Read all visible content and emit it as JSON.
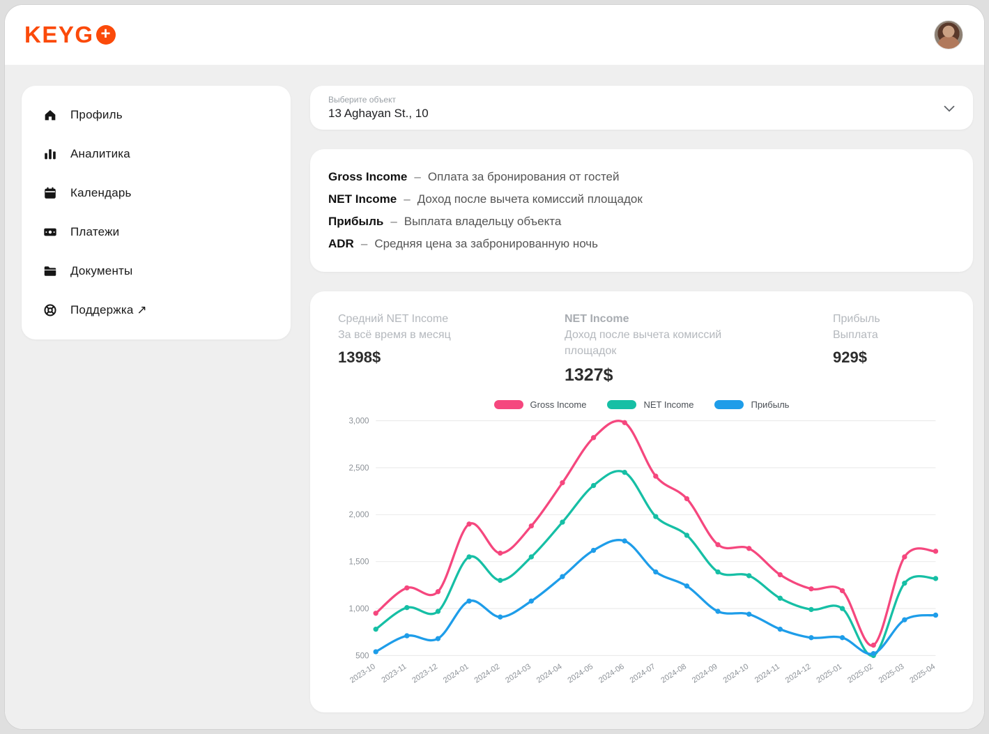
{
  "header": {
    "logo_text": "KEYG",
    "logo_badge": "+"
  },
  "sidebar": {
    "items": [
      {
        "label": "Профиль",
        "icon": "home-icon"
      },
      {
        "label": "Аналитика",
        "icon": "bar-chart-icon"
      },
      {
        "label": "Календарь",
        "icon": "calendar-icon"
      },
      {
        "label": "Платежи",
        "icon": "banknote-icon"
      },
      {
        "label": "Документы",
        "icon": "folder-icon"
      },
      {
        "label": "Поддержка ↗",
        "icon": "lifebuoy-icon"
      }
    ]
  },
  "selector": {
    "label": "Выберите объект",
    "value": "13 Aghayan St., 10"
  },
  "glossary": {
    "items": [
      {
        "term": "Gross Income",
        "sep": "–",
        "definition": "Оплата за бронирования от гостей"
      },
      {
        "term": "NET Income",
        "sep": "–",
        "definition": "Доход после вычета комиссий площадок"
      },
      {
        "term": "Прибыль",
        "sep": "–",
        "definition": "Выплата владельцу объекта"
      },
      {
        "term": "ADR",
        "sep": "–",
        "definition": "Средняя цена за забронированную ночь"
      }
    ]
  },
  "stats": [
    {
      "title": "Средний NET Income",
      "subtitle": "За всё время в месяц",
      "value": "1398$"
    },
    {
      "title": "NET Income",
      "subtitle": "Доход после вычета комиссий площадок",
      "value": "1327$"
    },
    {
      "title": "Прибыль",
      "subtitle": "Выплата",
      "value": "929$"
    }
  ],
  "chart_data": {
    "type": "line",
    "x": [
      "2023-10",
      "2023-11",
      "2023-12",
      "2024-01",
      "2024-02",
      "2024-03",
      "2024-04",
      "2024-05",
      "2024-06",
      "2024-07",
      "2024-08",
      "2024-09",
      "2024-10",
      "2024-11",
      "2024-12",
      "2025-01",
      "2025-02",
      "2025-03",
      "2025-04"
    ],
    "series": [
      {
        "name": "Gross Income",
        "color": "#f5477e",
        "values": [
          950,
          1220,
          1180,
          1900,
          1590,
          1880,
          2340,
          2820,
          2980,
          2410,
          2170,
          1680,
          1640,
          1360,
          1210,
          1190,
          610,
          1550,
          1610
        ]
      },
      {
        "name": "NET Income",
        "color": "#16bfa5",
        "values": [
          780,
          1010,
          970,
          1550,
          1300,
          1550,
          1920,
          2310,
          2450,
          1980,
          1780,
          1390,
          1350,
          1110,
          990,
          1000,
          500,
          1270,
          1320
        ]
      },
      {
        "name": "Прибыль",
        "color": "#1e9de9",
        "values": [
          540,
          710,
          680,
          1080,
          910,
          1080,
          1340,
          1620,
          1720,
          1390,
          1240,
          970,
          940,
          780,
          690,
          690,
          520,
          880,
          930
        ]
      }
    ],
    "ylim": [
      500,
      3000
    ],
    "yticks": [
      500,
      1000,
      1500,
      2000,
      2500,
      3000
    ],
    "grid": true,
    "legend_position": "top"
  }
}
